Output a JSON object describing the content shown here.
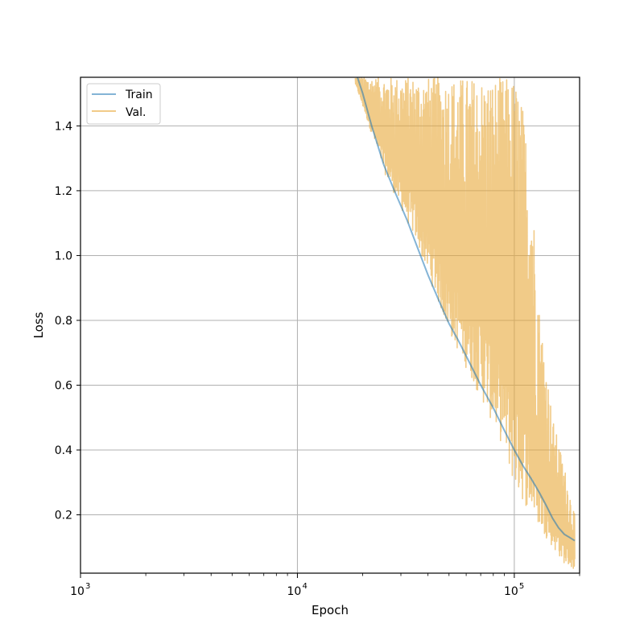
{
  "chart_data": {
    "type": "line",
    "title": "",
    "xlabel": "Epoch",
    "ylabel": "Loss",
    "xscale": "log",
    "xlim": [
      1000,
      200000
    ],
    "ylim": [
      0.02,
      1.55
    ],
    "grid": true,
    "legend_position": "top-left",
    "xticks": [
      {
        "value": 1000,
        "base": "10",
        "exp": "3"
      },
      {
        "value": 10000,
        "base": "10",
        "exp": "4"
      },
      {
        "value": 100000,
        "base": "10",
        "exp": "5"
      }
    ],
    "yticks": [
      {
        "value": 0.2,
        "label": "0.2"
      },
      {
        "value": 0.4,
        "label": "0.4"
      },
      {
        "value": 0.6,
        "label": "0.6"
      },
      {
        "value": 0.8,
        "label": "0.8"
      },
      {
        "value": 1.0,
        "label": "1.0"
      },
      {
        "value": 1.2,
        "label": "1.2"
      },
      {
        "value": 1.4,
        "label": "1.4"
      }
    ],
    "series": [
      {
        "name": "Train",
        "color": "#1f77b4",
        "x": [
          18500,
          20000,
          22000,
          25000,
          28000,
          32000,
          36000,
          40000,
          45000,
          50000,
          55000,
          60000,
          70000,
          80000,
          90000,
          100000,
          110000,
          120000,
          130000,
          140000,
          150000,
          160000,
          170000,
          180000,
          190000
        ],
        "y": [
          1.57,
          1.5,
          1.4,
          1.28,
          1.2,
          1.11,
          1.02,
          0.94,
          0.86,
          0.79,
          0.74,
          0.69,
          0.6,
          0.53,
          0.46,
          0.4,
          0.35,
          0.31,
          0.27,
          0.23,
          0.19,
          0.16,
          0.14,
          0.13,
          0.12
        ]
      },
      {
        "name": "Val.",
        "color": "#e8a838",
        "x_min": 18500,
        "x_max": 190000,
        "upper_envelope": {
          "x": [
            18500,
            40000,
            90000,
            100000,
            105000,
            110000,
            120000,
            130000,
            150000,
            170000,
            190000
          ],
          "y": [
            1.55,
            1.55,
            1.55,
            1.55,
            1.52,
            1.45,
            1.25,
            0.85,
            0.5,
            0.35,
            0.2
          ]
        },
        "lower_envelope": {
          "x": [
            18500,
            25000,
            35000,
            50000,
            70000,
            90000,
            100000,
            120000,
            150000,
            170000,
            190000
          ],
          "y": [
            1.53,
            1.26,
            1.05,
            0.76,
            0.56,
            0.4,
            0.28,
            0.2,
            0.1,
            0.05,
            0.03
          ]
        }
      }
    ]
  }
}
